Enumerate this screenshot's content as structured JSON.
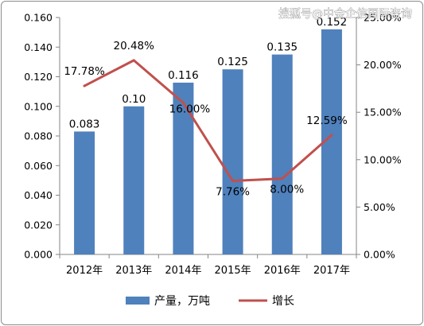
{
  "watermark": "搜狐号@中金企信国际咨询",
  "chart_data": {
    "type": "bar+line",
    "categories": [
      "2012年",
      "2013年",
      "2014年",
      "2015年",
      "2016年",
      "2017年"
    ],
    "series": [
      {
        "name": "产量，万吨",
        "type": "bar",
        "axis": "left",
        "color": "#4f81bd",
        "values": [
          0.083,
          0.1,
          0.116,
          0.125,
          0.135,
          0.152
        ],
        "data_labels": [
          "0.083",
          "0.10",
          "0.116",
          "0.125",
          "0.135",
          "0.152"
        ]
      },
      {
        "name": "增长",
        "type": "line",
        "axis": "right",
        "color": "#c0504d",
        "values": [
          17.78,
          20.48,
          16.0,
          7.76,
          8.0,
          12.59
        ],
        "data_labels": [
          "17.78%",
          "20.48%",
          "16.00%",
          "7.76%",
          "8.00%",
          "12.59%"
        ]
      }
    ],
    "left_axis": {
      "ylim": [
        0,
        0.16
      ],
      "ticks": [
        "0.000",
        "0.020",
        "0.040",
        "0.060",
        "0.080",
        "0.100",
        "0.120",
        "0.140",
        "0.160"
      ]
    },
    "right_axis": {
      "ylim": [
        0,
        25
      ],
      "ticks": [
        "0.00%",
        "5.00%",
        "10.00%",
        "15.00%",
        "20.00%",
        "25.00%"
      ]
    },
    "legend_position": "bottom",
    "grid": false
  }
}
